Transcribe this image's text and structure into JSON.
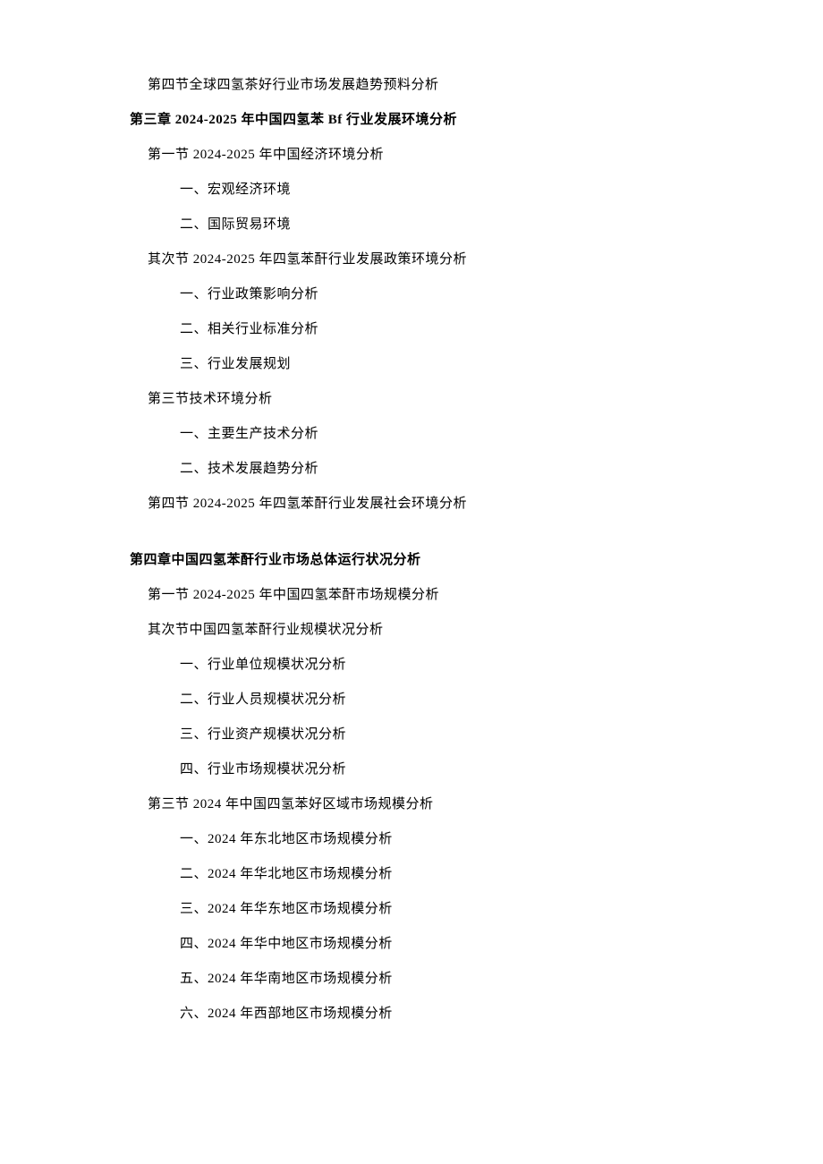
{
  "lines": [
    {
      "text": "第四节全球四氢茶好行业市场发展趋势预料分析",
      "cls": "line indent-1"
    },
    {
      "text": "第三章 2024-2025 年中国四氢苯 Bf 行业发展环境分析",
      "cls": "line chapter"
    },
    {
      "text": "第一节 2024-2025 年中国经济环境分析",
      "cls": "line indent-1"
    },
    {
      "text": "一、宏观经济环境",
      "cls": "line indent-2"
    },
    {
      "text": "二、国际贸易环境",
      "cls": "line indent-2"
    },
    {
      "text": "其次节 2024-2025 年四氢苯酐行业发展政策环境分析",
      "cls": "line indent-1"
    },
    {
      "text": "一、行业政策影响分析",
      "cls": "line indent-2"
    },
    {
      "text": "二、相关行业标准分析",
      "cls": "line indent-2"
    },
    {
      "text": "三、行业发展规划",
      "cls": "line indent-2"
    },
    {
      "text": "第三节技术环境分析",
      "cls": "line indent-1"
    },
    {
      "text": "一、主要生产技术分析",
      "cls": "line indent-2"
    },
    {
      "text": "二、技术发展趋势分析",
      "cls": "line indent-2"
    },
    {
      "text": "第四节 2024-2025 年四氢苯酐行业发展社会环境分析",
      "cls": "line indent-1"
    },
    {
      "text": "",
      "cls": "gap"
    },
    {
      "text": "第四章中国四氢苯酐行业市场总体运行状况分析",
      "cls": "line chapter"
    },
    {
      "text": "第一节 2024-2025 年中国四氢苯酐市场规模分析",
      "cls": "line indent-1"
    },
    {
      "text": "其次节中国四氢苯酐行业规模状况分析",
      "cls": "line indent-1"
    },
    {
      "text": "一、行业单位规模状况分析",
      "cls": "line indent-2"
    },
    {
      "text": "二、行业人员规模状况分析",
      "cls": "line indent-2"
    },
    {
      "text": "三、行业资产规模状况分析",
      "cls": "line indent-2"
    },
    {
      "text": "四、行业市场规模状况分析",
      "cls": "line indent-2"
    },
    {
      "text": "第三节 2024 年中国四氢苯好区域市场规模分析",
      "cls": "line indent-1"
    },
    {
      "text": "一、2024 年东北地区市场规模分析",
      "cls": "line indent-2"
    },
    {
      "text": "二、2024 年华北地区市场规模分析",
      "cls": "line indent-2"
    },
    {
      "text": "三、2024 年华东地区市场规模分析",
      "cls": "line indent-2"
    },
    {
      "text": "四、2024 年华中地区市场规模分析",
      "cls": "line indent-2"
    },
    {
      "text": "五、2024 年华南地区市场规模分析",
      "cls": "line indent-2"
    },
    {
      "text": "六、2024 年西部地区市场规模分析",
      "cls": "line indent-2"
    }
  ]
}
